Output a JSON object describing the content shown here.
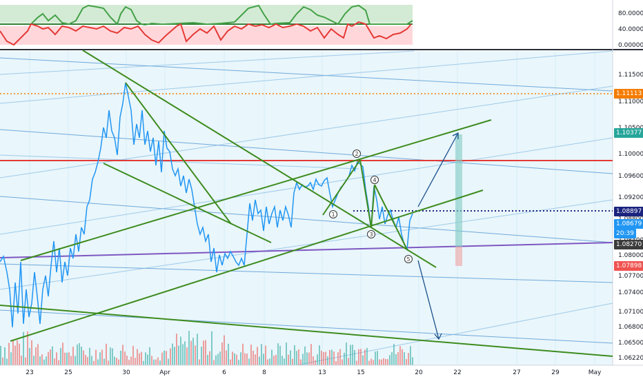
{
  "oscillator": {
    "ticks": [
      "80.00000",
      "40.00000",
      "0.00000"
    ],
    "levels": [
      0,
      40,
      80
    ],
    "colors": {
      "fast": "#43a047",
      "slow": "#e53935",
      "upper_zone": "#c8e6c9",
      "lower_zone": "#ffcdd2"
    }
  },
  "price_axis": {
    "ticks": [
      "1.11500",
      "1.11000",
      "1.10500",
      "1.10000",
      "1.09600",
      "1.09200",
      "1.08800",
      "1.08400",
      "1.08000",
      "1.07700",
      "1.07400",
      "1.07100",
      "1.06800",
      "1.06500",
      "1.06220"
    ]
  },
  "price_tags": [
    {
      "label": "1.11113",
      "color": "#f57c00",
      "value": 1.11113
    },
    {
      "label": "1.10377",
      "color": "#26a69a",
      "value": 1.10377
    },
    {
      "label": "1.08897",
      "color": "#1a237e",
      "value": 1.08897
    },
    {
      "label": "1.08679",
      "color": "#2196f3",
      "value": 1.08679
    },
    {
      "label": "20:39",
      "color": "#2196f3",
      "value": 1.0853
    },
    {
      "label": "1.08270",
      "color": "#3c3c3c",
      "value": 1.0827
    },
    {
      "label": "1.07898",
      "color": "#ef5350",
      "value": 1.07898
    }
  ],
  "time_axis": {
    "labels": [
      "23",
      "25",
      "30",
      "Apr",
      "6",
      "8",
      "13",
      "15",
      "20",
      "22",
      "27",
      "29",
      "May"
    ]
  },
  "wave_labels": [
    "1",
    "2",
    "3",
    "4",
    "5"
  ],
  "colors": {
    "price_line": "#2196f3",
    "trendline": "#3d8b1e",
    "channel": "#5b9bd5",
    "horizontal_resistance": "#e53935",
    "horizontal_support": "#7e57c2",
    "dotted_level": "#f57c00",
    "volume_up": "#26a69a",
    "volume_down": "#ef5350"
  }
}
